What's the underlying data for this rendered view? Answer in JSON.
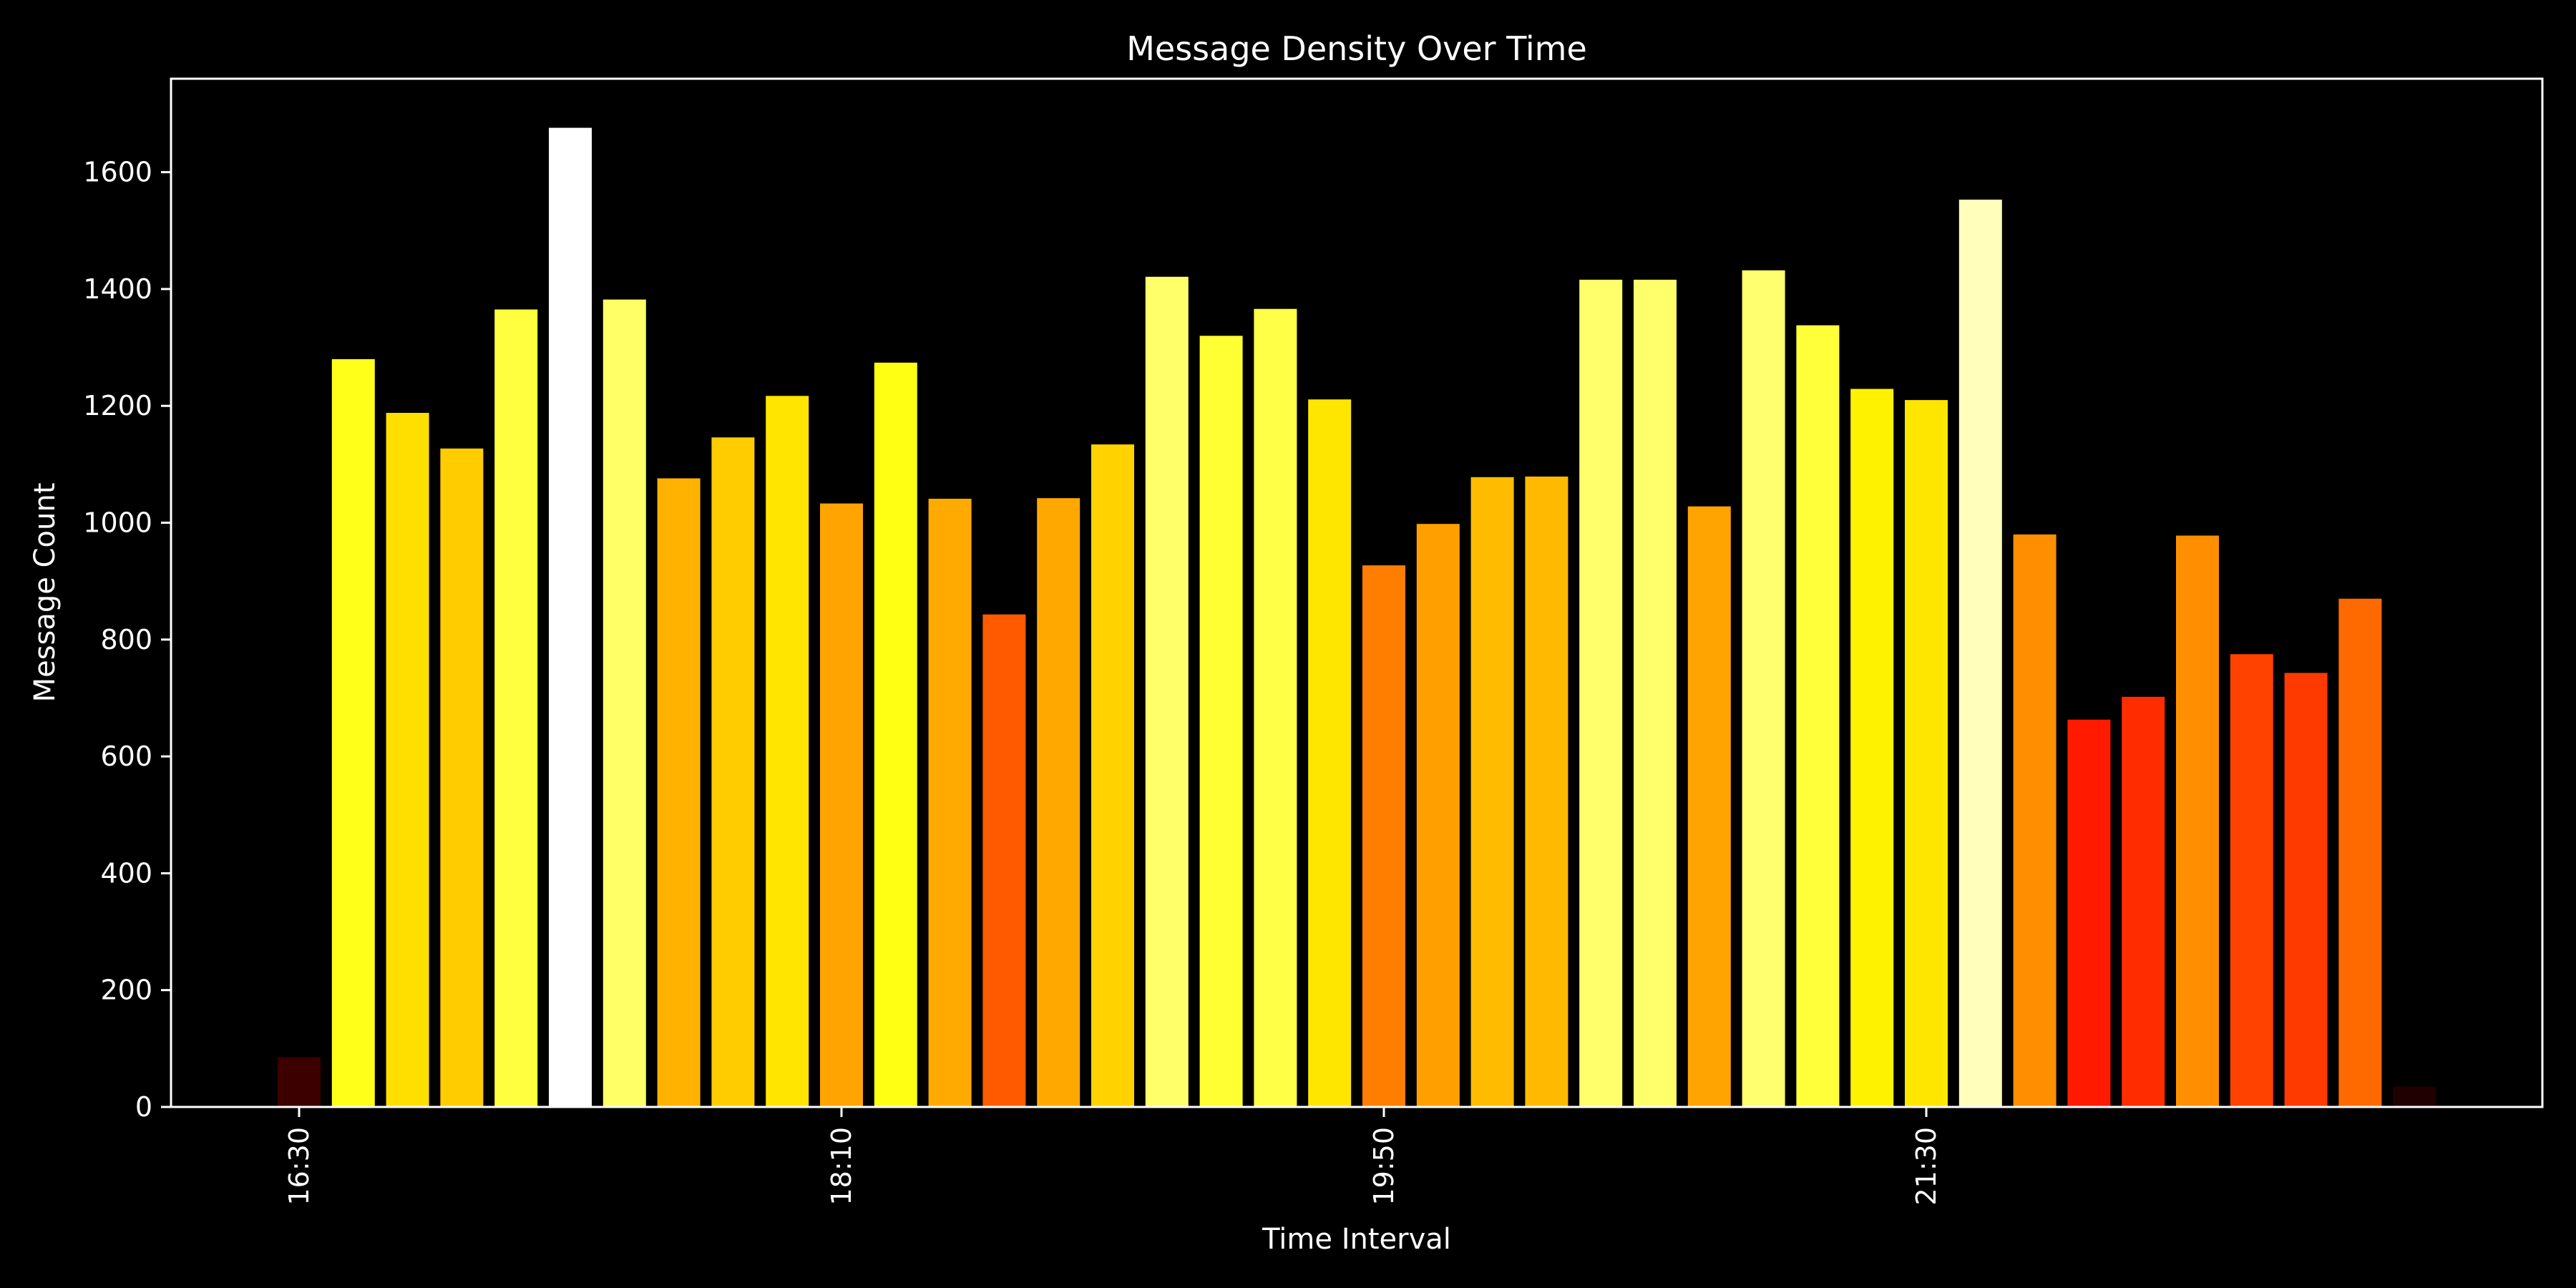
{
  "chart_data": {
    "type": "bar",
    "title": "Message Density Over Time",
    "xlabel": "Time Interval",
    "ylabel": "Message Count",
    "ylim": [
      0,
      1760
    ],
    "y_ticks": [
      0,
      200,
      400,
      600,
      800,
      1000,
      1200,
      1400,
      1600
    ],
    "x_tick_labels": [
      {
        "label": "16:30",
        "index": 0
      },
      {
        "label": "18:10",
        "index": 10
      },
      {
        "label": "19:50",
        "index": 20
      },
      {
        "label": "21:30",
        "index": 30
      }
    ],
    "x_interval_minutes": 10,
    "grid": false,
    "values": [
      85,
      1280,
      1188,
      1127,
      1365,
      1676,
      1382,
      1076,
      1146,
      1217,
      1033,
      1274,
      1041,
      843,
      1042,
      1134,
      1421,
      1320,
      1366,
      1211,
      927,
      998,
      1078,
      1079,
      1416,
      1416,
      1028,
      1432,
      1338,
      1229,
      1210,
      1553,
      980,
      663,
      702,
      978,
      775,
      743,
      870,
      35
    ],
    "colors": [
      "#3c0000",
      "#ffff1a",
      "#ffdf00",
      "#ffcc00",
      "#ffff40",
      "#ffffff",
      "#ffff66",
      "#ffb300",
      "#ffcc00",
      "#ffe500",
      "#ffa400",
      "#ffff14",
      "#ffaa00",
      "#ff5a00",
      "#ffa800",
      "#ffd200",
      "#ffff6a",
      "#ffff33",
      "#ffff48",
      "#ffe600",
      "#ff7e00",
      "#ffa000",
      "#ffbb00",
      "#ffba00",
      "#ffff6c",
      "#ffff6c",
      "#ffa400",
      "#ffff70",
      "#ffff3a",
      "#fff200",
      "#ffe600",
      "#ffffbb",
      "#ff8f00",
      "#ff1a00",
      "#ff2c00",
      "#ff8f00",
      "#ff4200",
      "#ff3a00",
      "#ff6a00",
      "#200000"
    ]
  },
  "colors": {
    "background": "#000000",
    "foreground": "#ffffff"
  }
}
